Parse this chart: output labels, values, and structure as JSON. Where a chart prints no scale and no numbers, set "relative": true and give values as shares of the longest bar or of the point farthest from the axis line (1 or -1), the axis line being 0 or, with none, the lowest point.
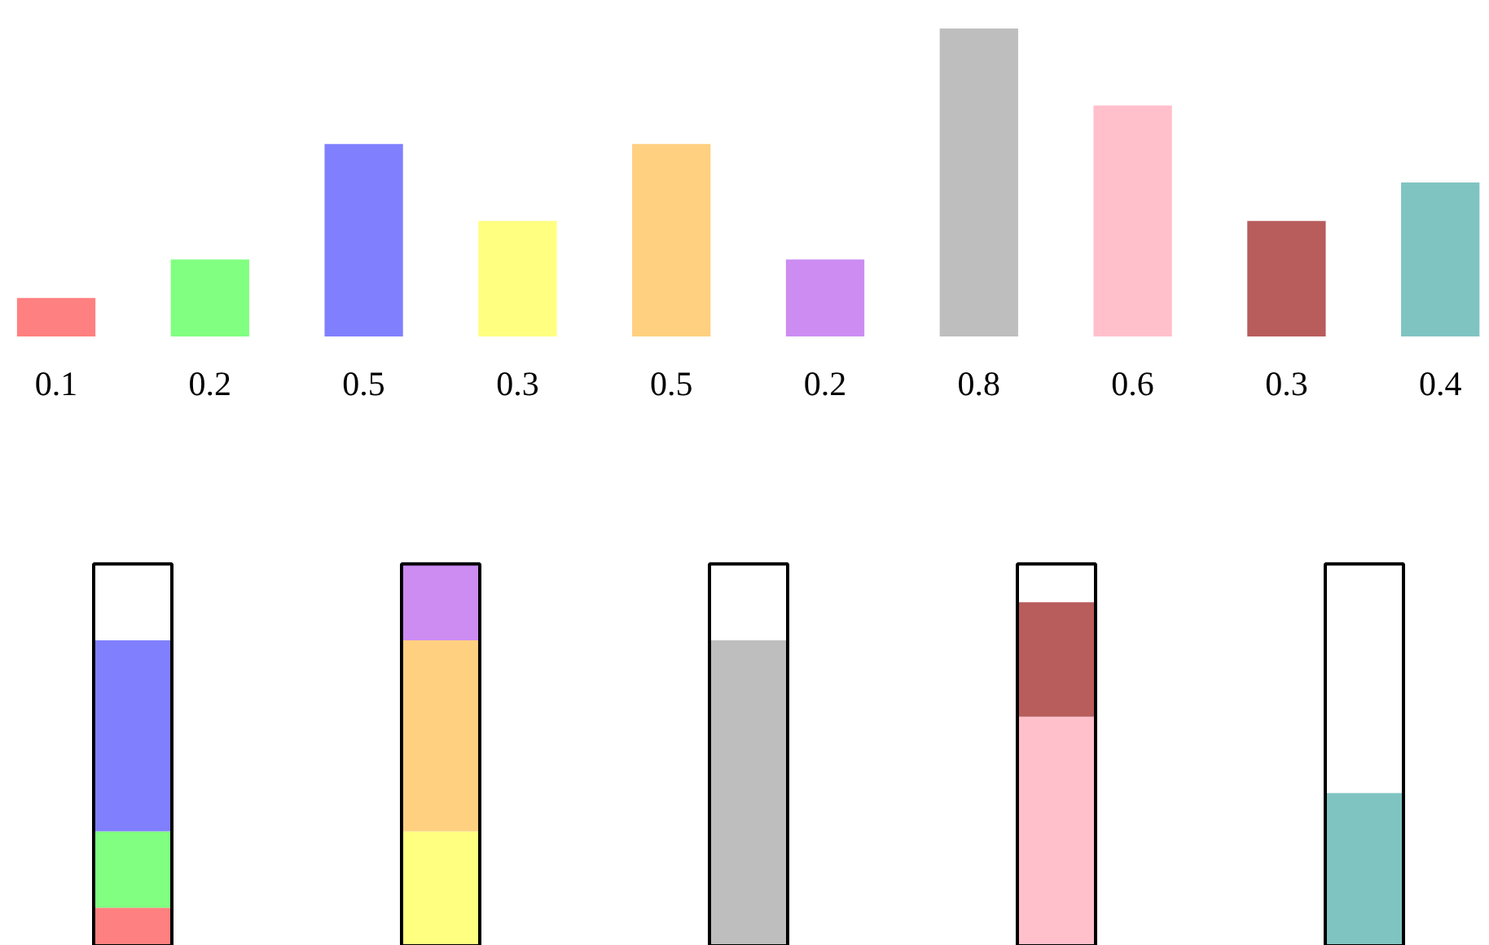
{
  "chart_data": [
    {
      "type": "bar",
      "categories": [
        null,
        null,
        null,
        null,
        null,
        null,
        null,
        null,
        null,
        null
      ],
      "values": [
        0.1,
        0.2,
        0.5,
        0.3,
        0.5,
        0.2,
        0.8,
        0.6,
        0.3,
        0.4
      ],
      "colors": [
        "#ff8080",
        "#80ff80",
        "#8080ff",
        "#ffff80",
        "#ffd080",
        "#cc8cf2",
        "#bebebe",
        "#ffc0cb",
        "#b85c5c",
        "#80c4c2"
      ],
      "data_labels": true,
      "tick_labels": false
    },
    {
      "type": "bar",
      "stacked": true,
      "relative": true,
      "categories": [
        null,
        null,
        null,
        null,
        null
      ],
      "series": [
        {
          "colors": [
            "#ff8080",
            "#ffff80",
            "#bebebe",
            "#ffc0cb",
            "#80c4c2"
          ],
          "values": [
            0.1,
            0.3,
            0.8,
            0.6,
            0.4
          ]
        },
        {
          "colors": [
            "#80ff80",
            "#ffd080",
            null,
            "#b85c5c",
            null
          ],
          "values": [
            0.2,
            0.5,
            null,
            0.3,
            null
          ]
        },
        {
          "colors": [
            "#8080ff",
            "#cc8cf2",
            null,
            null,
            null
          ],
          "values": [
            0.5,
            0.2,
            null,
            null,
            null
          ]
        }
      ],
      "tick_labels": false
    }
  ]
}
